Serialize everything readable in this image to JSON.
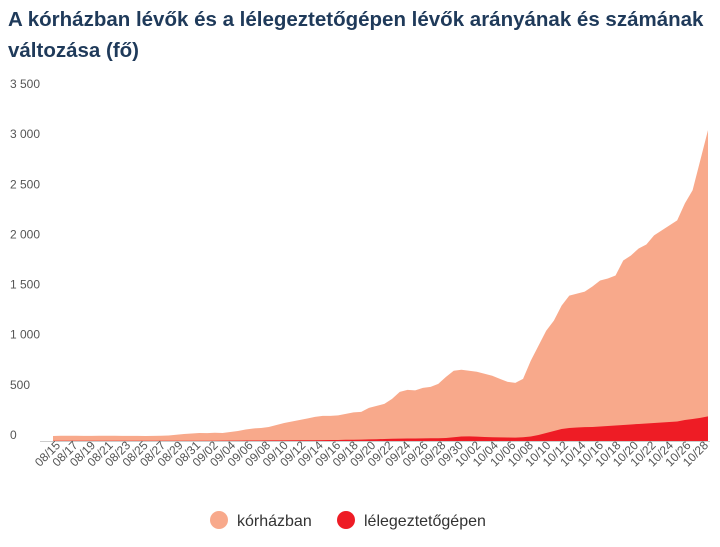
{
  "chart_data": {
    "type": "area",
    "title": "A kórházban lévők és a lélegeztetőgépen lévők arányának és számának változása (fő)",
    "xlabel": "",
    "ylabel": "",
    "ylim": [
      0,
      3500
    ],
    "yticks": [
      0,
      500,
      1000,
      1500,
      2000,
      2500,
      3000,
      3500
    ],
    "ytick_labels": [
      "0",
      "500",
      "1 000",
      "1 500",
      "2 000",
      "2 500",
      "3 000",
      "3 500"
    ],
    "x_tick_labels": [
      "08/15",
      "08/17",
      "08/19",
      "08/21",
      "08/23",
      "08/25",
      "08/27",
      "08/29",
      "08/31",
      "09/02",
      "09/04",
      "09/06",
      "09/08",
      "09/10",
      "09/12",
      "09/14",
      "09/16",
      "09/18",
      "09/20",
      "09/22",
      "09/24",
      "09/26",
      "09/28",
      "09/30",
      "10/02",
      "10/04",
      "10/06",
      "10/08",
      "10/10",
      "10/12",
      "10/14",
      "10/16",
      "10/18",
      "10/20",
      "10/22",
      "10/24",
      "10/26",
      "10/28"
    ],
    "legend_position": "bottom",
    "grid": false,
    "series": [
      {
        "name": "kórházban",
        "color": "#f8a98b",
        "values": [
          50,
          52,
          52,
          52,
          51,
          51,
          52,
          52,
          52,
          51,
          51,
          51,
          50,
          51,
          52,
          55,
          62,
          70,
          75,
          80,
          78,
          82,
          80,
          90,
          100,
          115,
          125,
          130,
          140,
          160,
          180,
          195,
          210,
          225,
          240,
          250,
          250,
          255,
          270,
          285,
          290,
          330,
          350,
          370,
          420,
          490,
          510,
          505,
          530,
          540,
          570,
          640,
          700,
          710,
          700,
          690,
          670,
          650,
          620,
          590,
          580,
          620,
          800,
          950,
          1100,
          1200,
          1350,
          1450,
          1470,
          1490,
          1540,
          1600,
          1620,
          1650,
          1800,
          1850,
          1920,
          1960,
          2050,
          2100,
          2150,
          2200,
          2370,
          2500,
          2800,
          3100
        ]
      },
      {
        "name": "lélegeztetőgépen",
        "color": "#ee1c25",
        "values": [
          2,
          2,
          2,
          2,
          2,
          2,
          2,
          2,
          2,
          2,
          2,
          2,
          2,
          2,
          2,
          2,
          3,
          3,
          3,
          3,
          3,
          3,
          4,
          4,
          4,
          5,
          5,
          5,
          6,
          6,
          6,
          7,
          7,
          8,
          8,
          9,
          10,
          10,
          12,
          13,
          14,
          16,
          18,
          20,
          22,
          24,
          25,
          25,
          26,
          27,
          28,
          30,
          38,
          45,
          46,
          44,
          40,
          38,
          36,
          35,
          34,
          38,
          45,
          60,
          80,
          100,
          120,
          130,
          135,
          138,
          140,
          145,
          150,
          155,
          160,
          165,
          170,
          175,
          180,
          185,
          190,
          195,
          210,
          220,
          230,
          245
        ]
      }
    ]
  }
}
